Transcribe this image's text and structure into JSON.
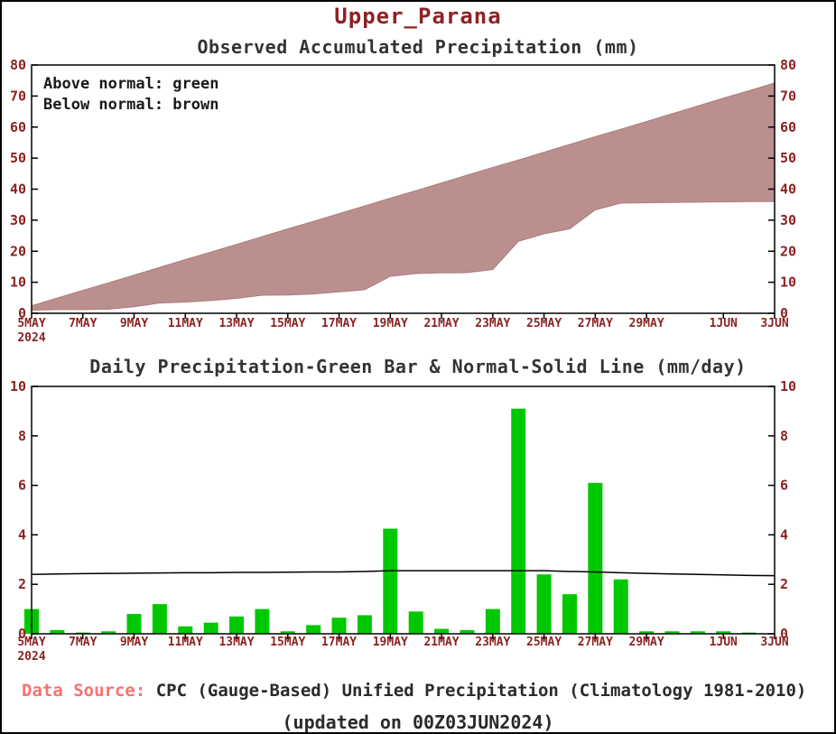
{
  "page": {
    "title": "Upper_Parana",
    "footer_label": "Data Source:",
    "footer_text": " CPC (Gauge-Based) Unified Precipitation (Climatology 1981-2010)",
    "footer_updated": "(updated on 00Z03JUN2024)"
  },
  "colors": {
    "title": "#8b2323",
    "subtitle": "#333333",
    "axis_text": "#8b2323",
    "axis_line": "#000000",
    "fill_brown": "#bc8f8f",
    "fill_brown_edge": "#a87e7e",
    "bar_green": "#00c800",
    "normal_line": "#000000",
    "footer_label": "#fa7070",
    "footer_text": "#2a2a2a"
  },
  "chart_data": [
    {
      "type": "area",
      "title": "Observed Accumulated Precipitation (mm)",
      "legend": [
        "Above normal: green",
        "Below normal: brown"
      ],
      "x_tick_labels": [
        "5MAY",
        "7MAY",
        "9MAY",
        "11MAY",
        "13MAY",
        "15MAY",
        "17MAY",
        "19MAY",
        "21MAY",
        "23MAY",
        "25MAY",
        "27MAY",
        "29MAY",
        "1JUN",
        "3JUN"
      ],
      "x_tick_positions": [
        0,
        2,
        4,
        6,
        8,
        10,
        12,
        14,
        16,
        18,
        20,
        22,
        24,
        27,
        29
      ],
      "x_year_label": "2024",
      "ylim": [
        0,
        80
      ],
      "yticks": [
        0,
        10,
        20,
        30,
        40,
        50,
        60,
        70,
        80
      ],
      "fill_between": "brown (observed below normal)",
      "series": [
        {
          "name": "normal_accumulated",
          "values": [
            2.4,
            4.9,
            7.4,
            9.8,
            12.3,
            14.8,
            17.3,
            19.7,
            22.2,
            24.7,
            27.2,
            29.6,
            32.1,
            34.6,
            37.1,
            39.5,
            42.0,
            44.5,
            47.0,
            49.4,
            51.9,
            54.4,
            56.9,
            59.3,
            61.8,
            64.3,
            66.8,
            69.3,
            71.7,
            74.2
          ]
        },
        {
          "name": "observed_accumulated",
          "values": [
            1.0,
            1.2,
            1.2,
            1.3,
            2.1,
            3.3,
            3.6,
            4.1,
            4.8,
            5.8,
            5.9,
            6.2,
            6.9,
            7.6,
            11.9,
            12.8,
            13.0,
            13.1,
            14.1,
            23.2,
            25.6,
            27.2,
            33.3,
            35.5,
            35.6,
            35.7,
            35.8,
            35.9,
            36.0,
            36.0
          ]
        }
      ]
    },
    {
      "type": "bar",
      "title": "Daily Precipitation-Green Bar & Normal-Solid Line (mm/day)",
      "x_tick_labels": [
        "5MAY",
        "7MAY",
        "9MAY",
        "11MAY",
        "13MAY",
        "15MAY",
        "17MAY",
        "19MAY",
        "21MAY",
        "23MAY",
        "25MAY",
        "27MAY",
        "29MAY",
        "1JUN",
        "3JUN"
      ],
      "x_tick_positions": [
        0,
        2,
        4,
        6,
        8,
        10,
        12,
        14,
        16,
        18,
        20,
        22,
        24,
        27,
        29
      ],
      "x_year_label": "2024",
      "ylim": [
        0,
        10
      ],
      "yticks": [
        0,
        2,
        4,
        6,
        8,
        10
      ],
      "series": [
        {
          "name": "daily_precipitation",
          "render": "bar",
          "values": [
            1.0,
            0.15,
            0.05,
            0.1,
            0.8,
            1.2,
            0.3,
            0.45,
            0.7,
            1.0,
            0.1,
            0.35,
            0.65,
            0.75,
            4.25,
            0.9,
            0.2,
            0.15,
            1.0,
            9.1,
            2.4,
            1.6,
            6.1,
            2.2,
            0.1,
            0.1,
            0.1,
            0.1,
            0.05,
            0.0
          ]
        },
        {
          "name": "normal_daily",
          "render": "line",
          "values": [
            2.4,
            2.42,
            2.43,
            2.44,
            2.45,
            2.46,
            2.47,
            2.47,
            2.48,
            2.48,
            2.49,
            2.5,
            2.5,
            2.52,
            2.55,
            2.55,
            2.55,
            2.55,
            2.55,
            2.55,
            2.55,
            2.52,
            2.5,
            2.47,
            2.44,
            2.42,
            2.4,
            2.38,
            2.36,
            2.35
          ]
        }
      ]
    }
  ]
}
